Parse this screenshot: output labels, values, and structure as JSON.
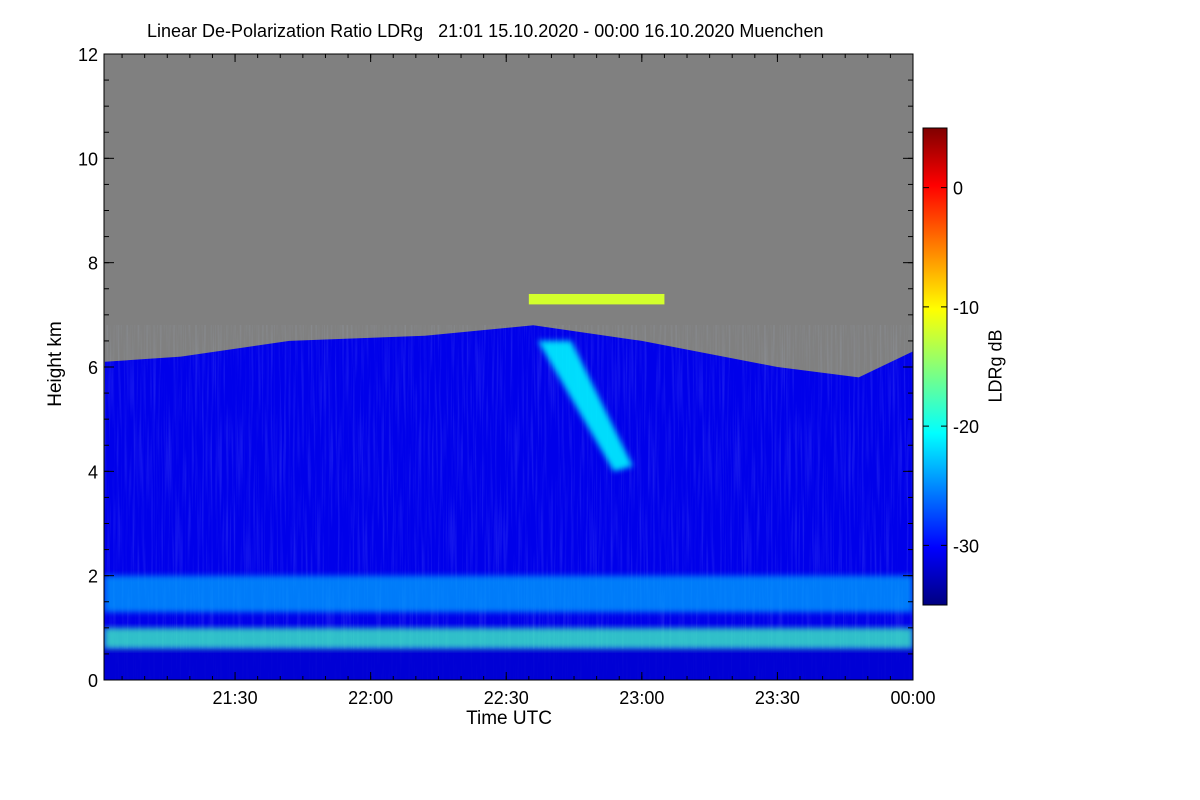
{
  "chart_data": {
    "type": "heatmap",
    "title": "Linear De-Polarization Ratio LDRg   21:01 15.10.2020 - 00:00 16.10.2020 Muenchen",
    "xlabel": "Time UTC",
    "ylabel": "Height km",
    "colorbar_label": "LDRg dB",
    "x_ticks": [
      {
        "t": 21.5,
        "label": "21:30"
      },
      {
        "t": 22.0,
        "label": "22:00"
      },
      {
        "t": 22.5,
        "label": "22:30"
      },
      {
        "t": 23.0,
        "label": "23:00"
      },
      {
        "t": 23.5,
        "label": "23:30"
      },
      {
        "t": 24.0,
        "label": "00:00"
      }
    ],
    "xlim_hours": [
      21.0167,
      24.0
    ],
    "ylim": [
      0,
      12
    ],
    "y_ticks": [
      {
        "v": 0,
        "label": "0"
      },
      {
        "v": 2,
        "label": "2"
      },
      {
        "v": 4,
        "label": "4"
      },
      {
        "v": 6,
        "label": "6"
      },
      {
        "v": 8,
        "label": "8"
      },
      {
        "v": 10,
        "label": "10"
      },
      {
        "v": 12,
        "label": "12"
      }
    ],
    "colorbar_range_db": [
      -35,
      5
    ],
    "colorbar_ticks": [
      {
        "v": 0,
        "label": "0"
      },
      {
        "v": -10,
        "label": "-10"
      },
      {
        "v": -20,
        "label": "-20"
      },
      {
        "v": -30,
        "label": "-30"
      }
    ],
    "no_data_color": "#808080",
    "background_ldr_db": -31,
    "layers": [
      {
        "feature": "boundary-layer bright band",
        "height_km": [
          0.6,
          1.0
        ],
        "ldr_db": -18
      },
      {
        "feature": "aerosol layer",
        "height_km": [
          1.3,
          2.0
        ],
        "ldr_db": -24
      },
      {
        "feature": "fall streak",
        "height_km": [
          4.0,
          6.5
        ],
        "time": [
          "22:37",
          "22:58"
        ],
        "ldr_db": -21
      },
      {
        "feature": "thin high layer",
        "height_km": [
          7.2,
          7.4
        ],
        "time": [
          "22:35",
          "23:05"
        ],
        "ldr_db": -12
      }
    ],
    "cloud_top_profile_km": [
      {
        "t": 21.02,
        "h": 6.1
      },
      {
        "t": 21.3,
        "h": 6.2
      },
      {
        "t": 21.7,
        "h": 6.5
      },
      {
        "t": 22.2,
        "h": 6.6
      },
      {
        "t": 22.6,
        "h": 6.8
      },
      {
        "t": 23.0,
        "h": 6.5
      },
      {
        "t": 23.5,
        "h": 6.0
      },
      {
        "t": 23.8,
        "h": 5.8
      },
      {
        "t": 24.0,
        "h": 6.3
      }
    ]
  }
}
